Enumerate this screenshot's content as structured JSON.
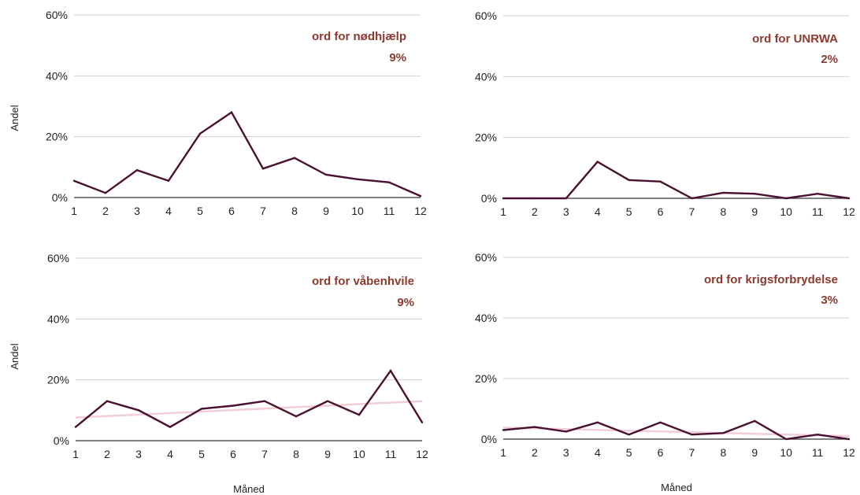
{
  "colors": {
    "series": "#4a1030",
    "trend": "#f2cdd6",
    "grid": "#d0d0d0",
    "axis": "#333333",
    "title": "#8b3a2f"
  },
  "y_axis_label": "Andel",
  "x_axis_label": "Måned",
  "chart_data": [
    {
      "type": "line",
      "title": "ord for nødhjælp",
      "summary": "9%",
      "x": [
        1,
        2,
        3,
        4,
        5,
        6,
        7,
        8,
        9,
        10,
        11,
        12
      ],
      "x_ticks": [
        "1",
        "2",
        "3",
        "4",
        "5",
        "6",
        "7",
        "8",
        "9",
        "10",
        "11",
        "12"
      ],
      "y_ticks": [
        "0%",
        "20%",
        "40%",
        "60%"
      ],
      "ylim": [
        0,
        60
      ],
      "grid": true,
      "series": [
        {
          "values": [
            5.5,
            1.5,
            9,
            5.5,
            21,
            28,
            9.5,
            13,
            7.5,
            6,
            5,
            0.5
          ]
        }
      ]
    },
    {
      "type": "line",
      "title": "ord for UNRWA",
      "summary": "2%",
      "x": [
        1,
        2,
        3,
        4,
        5,
        6,
        7,
        8,
        9,
        10,
        11,
        12
      ],
      "x_ticks": [
        "1",
        "2",
        "3",
        "4",
        "5",
        "6",
        "7",
        "8",
        "9",
        "10",
        "11",
        "12"
      ],
      "y_ticks": [
        "0%",
        "20%",
        "40%",
        "60%"
      ],
      "ylim": [
        0,
        60
      ],
      "grid": true,
      "series": [
        {
          "values": [
            0,
            0,
            0,
            12,
            6,
            5.5,
            0,
            1.8,
            1.5,
            0,
            1.5,
            0
          ]
        }
      ]
    },
    {
      "type": "line",
      "title": "ord for våbenhvile",
      "summary": "9%",
      "x": [
        1,
        2,
        3,
        4,
        5,
        6,
        7,
        8,
        9,
        10,
        11,
        12
      ],
      "x_ticks": [
        "1",
        "2",
        "3",
        "4",
        "5",
        "6",
        "7",
        "8",
        "9",
        "10",
        "11",
        "12"
      ],
      "y_ticks": [
        "0%",
        "20%",
        "40%",
        "60%"
      ],
      "ylim": [
        0,
        60
      ],
      "grid": true,
      "series": [
        {
          "values": [
            4.5,
            13,
            10,
            4.5,
            10.5,
            11.5,
            13,
            8,
            13,
            8.5,
            23,
            6
          ]
        }
      ],
      "trendline": [
        7.6,
        13
      ]
    },
    {
      "type": "line",
      "title": "ord for krigsforbrydelse",
      "summary": "3%",
      "x": [
        1,
        2,
        3,
        4,
        5,
        6,
        7,
        8,
        9,
        10,
        11,
        12
      ],
      "x_ticks": [
        "1",
        "2",
        "3",
        "4",
        "5",
        "6",
        "7",
        "8",
        "9",
        "10",
        "11",
        "12"
      ],
      "y_ticks": [
        "0%",
        "20%",
        "40%",
        "60%"
      ],
      "ylim": [
        0,
        60
      ],
      "grid": true,
      "series": [
        {
          "values": [
            3,
            4,
            2.5,
            5.5,
            1.5,
            5.5,
            1.5,
            2,
            6,
            0,
            1.5,
            0
          ]
        }
      ],
      "trendline": [
        3.8,
        1
      ]
    }
  ]
}
